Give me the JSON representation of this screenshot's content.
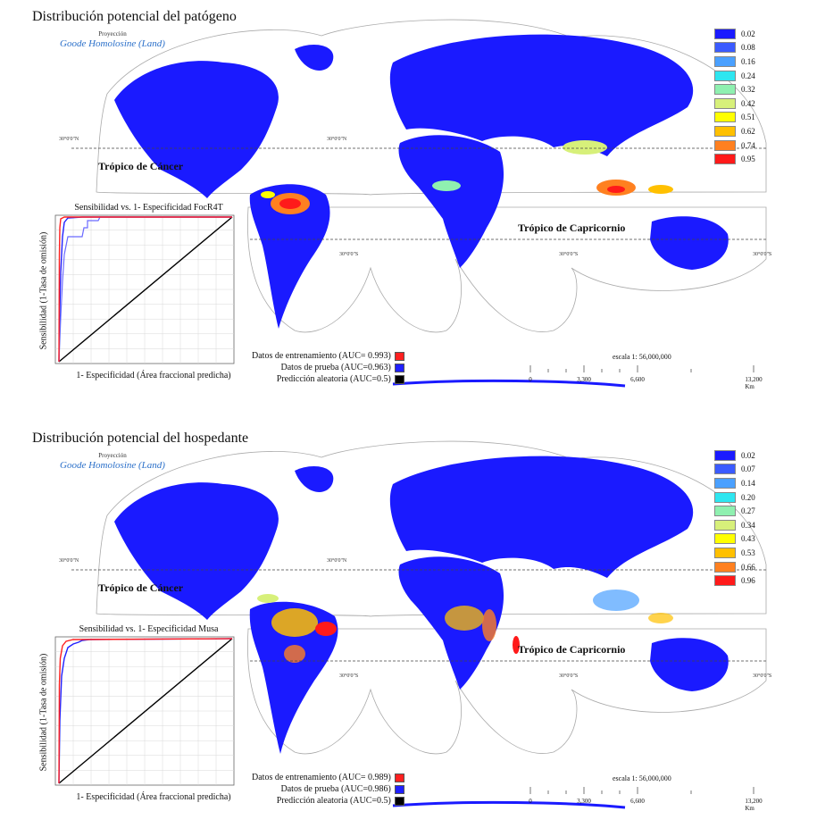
{
  "panels": [
    {
      "title": "Distribución potencial del patógeno",
      "projection_label": "Proyección",
      "projection_name": "Goode Homolosine (Land)",
      "legend_values": [
        "0.02",
        "0.08",
        "0.16",
        "0.24",
        "0.32",
        "0.42",
        "0.51",
        "0.62",
        "0.74",
        "0.95"
      ],
      "lat_labels": [
        "30°0'0\"N",
        "30°0'0\"N",
        "30°0'0\"S",
        "30°0'0\"S",
        "30°0'0\"S"
      ],
      "tropic_cancer": "Trópico de Cáncer",
      "tropic_capricorn": "Trópico de Capricornio",
      "roc": {
        "title": "Sensibilidad vs. 1- Especificidad FocR4T",
        "ylabel": "Sensibilidad (1-Tasa de omisión)",
        "xlabel": "1- Especificidad (Área fraccional predicha)"
      },
      "roc_legend": [
        "Datos de entrenamiento (AUC= 0.993)",
        "Datos de prueba (AUC=0.963)",
        "Predicción aleatoria (AUC=0.5)"
      ],
      "scale_text": "escala 1: 56,000,000",
      "scale_ticks": [
        "0",
        "3,300",
        "6,600",
        "13,200 Km"
      ]
    },
    {
      "title": "Distribución potencial del hospedante",
      "projection_label": "Proyección",
      "projection_name": "Goode Homolosine (Land)",
      "legend_values": [
        "0.02",
        "0.07",
        "0.14",
        "0.20",
        "0.27",
        "0.34",
        "0.43",
        "0.53",
        "0.66",
        "0.96"
      ],
      "lat_labels": [
        "30°0'0\"N",
        "30°0'0\"N",
        "30°0'0\"S",
        "30°0'0\"S",
        "30°0'0\"S"
      ],
      "tropic_cancer": "Trópico de Cáncer",
      "tropic_capricorn": "Trópico de Capricornio",
      "roc": {
        "title": "Sensibilidad vs. 1- Especificidad Musa",
        "ylabel": "Sensibilidad (1-Tasa de omisión)",
        "xlabel": "1- Especificidad (Área fraccional predicha)"
      },
      "roc_legend": [
        "Datos de entrenamiento (AUC= 0.989)",
        "Datos de prueba (AUC=0.986)",
        "Predicción aleatoria (AUC=0.5)"
      ],
      "scale_text": "escala 1: 56,000,000",
      "scale_ticks": [
        "0",
        "3,300",
        "6,600",
        "13,200 Km"
      ]
    }
  ],
  "colors": {
    "legend": [
      "#1a1aff",
      "#3b5bff",
      "#4aa0ff",
      "#2ee6f0",
      "#8ff0b0",
      "#d7f07a",
      "#ffff00",
      "#ffc000",
      "#ff8020",
      "#ff1a1a"
    ],
    "training": "#ff2020",
    "test": "#2020ff",
    "random": "#000000",
    "land": "#1a1aff"
  }
}
